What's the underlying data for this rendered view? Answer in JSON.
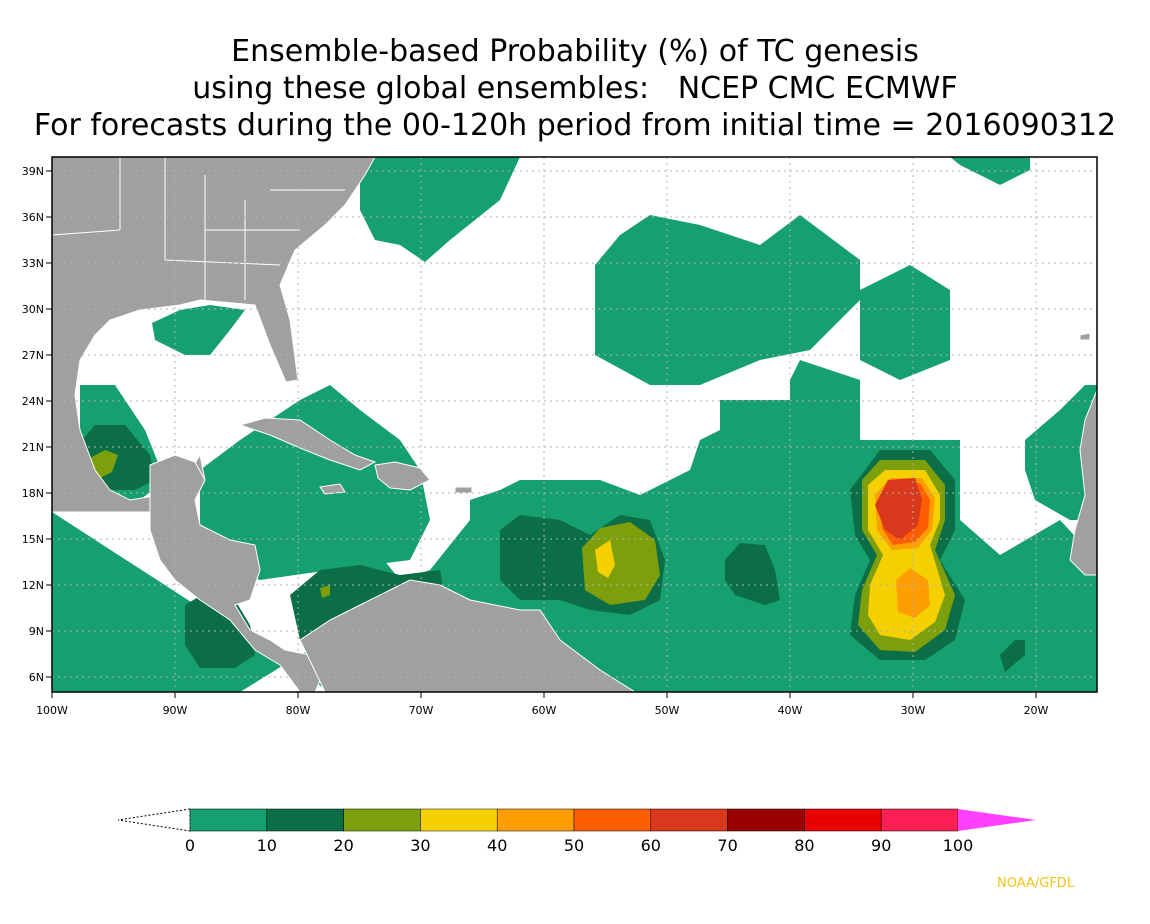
{
  "title": {
    "line1": "Ensemble-based Probability (%) of TC genesis",
    "line2": "using these global ensembles:   NCEP CMC ECMWF",
    "line3": "For forecasts during the 00-120h period from initial time = 2016090312"
  },
  "map": {
    "lon_range": [
      -100,
      -15
    ],
    "lat_range": [
      5,
      40
    ],
    "lat_ticks": [
      "39N",
      "36N",
      "33N",
      "30N",
      "27N",
      "24N",
      "21N",
      "18N",
      "15N",
      "12N",
      "9N",
      "6N"
    ],
    "lon_ticks": [
      "100W",
      "90W",
      "80W",
      "70W",
      "60W",
      "50W",
      "40W",
      "30W",
      "20W"
    ],
    "grid": true,
    "land_color": "#a0a0a0",
    "ocean_color": "#ffffff"
  },
  "colorbar": {
    "labels": [
      "0",
      "10",
      "20",
      "30",
      "40",
      "50",
      "60",
      "70",
      "80",
      "90",
      "100"
    ],
    "colors": [
      "#16a070",
      "#0b6e46",
      "#7d9f0c",
      "#f5d000",
      "#ff9e00",
      "#ff5e00",
      "#d8381c",
      "#9a0000",
      "#e60000",
      "#ff1f55",
      "#ff40ff"
    ]
  },
  "credit": "NOAA/GFDL"
}
